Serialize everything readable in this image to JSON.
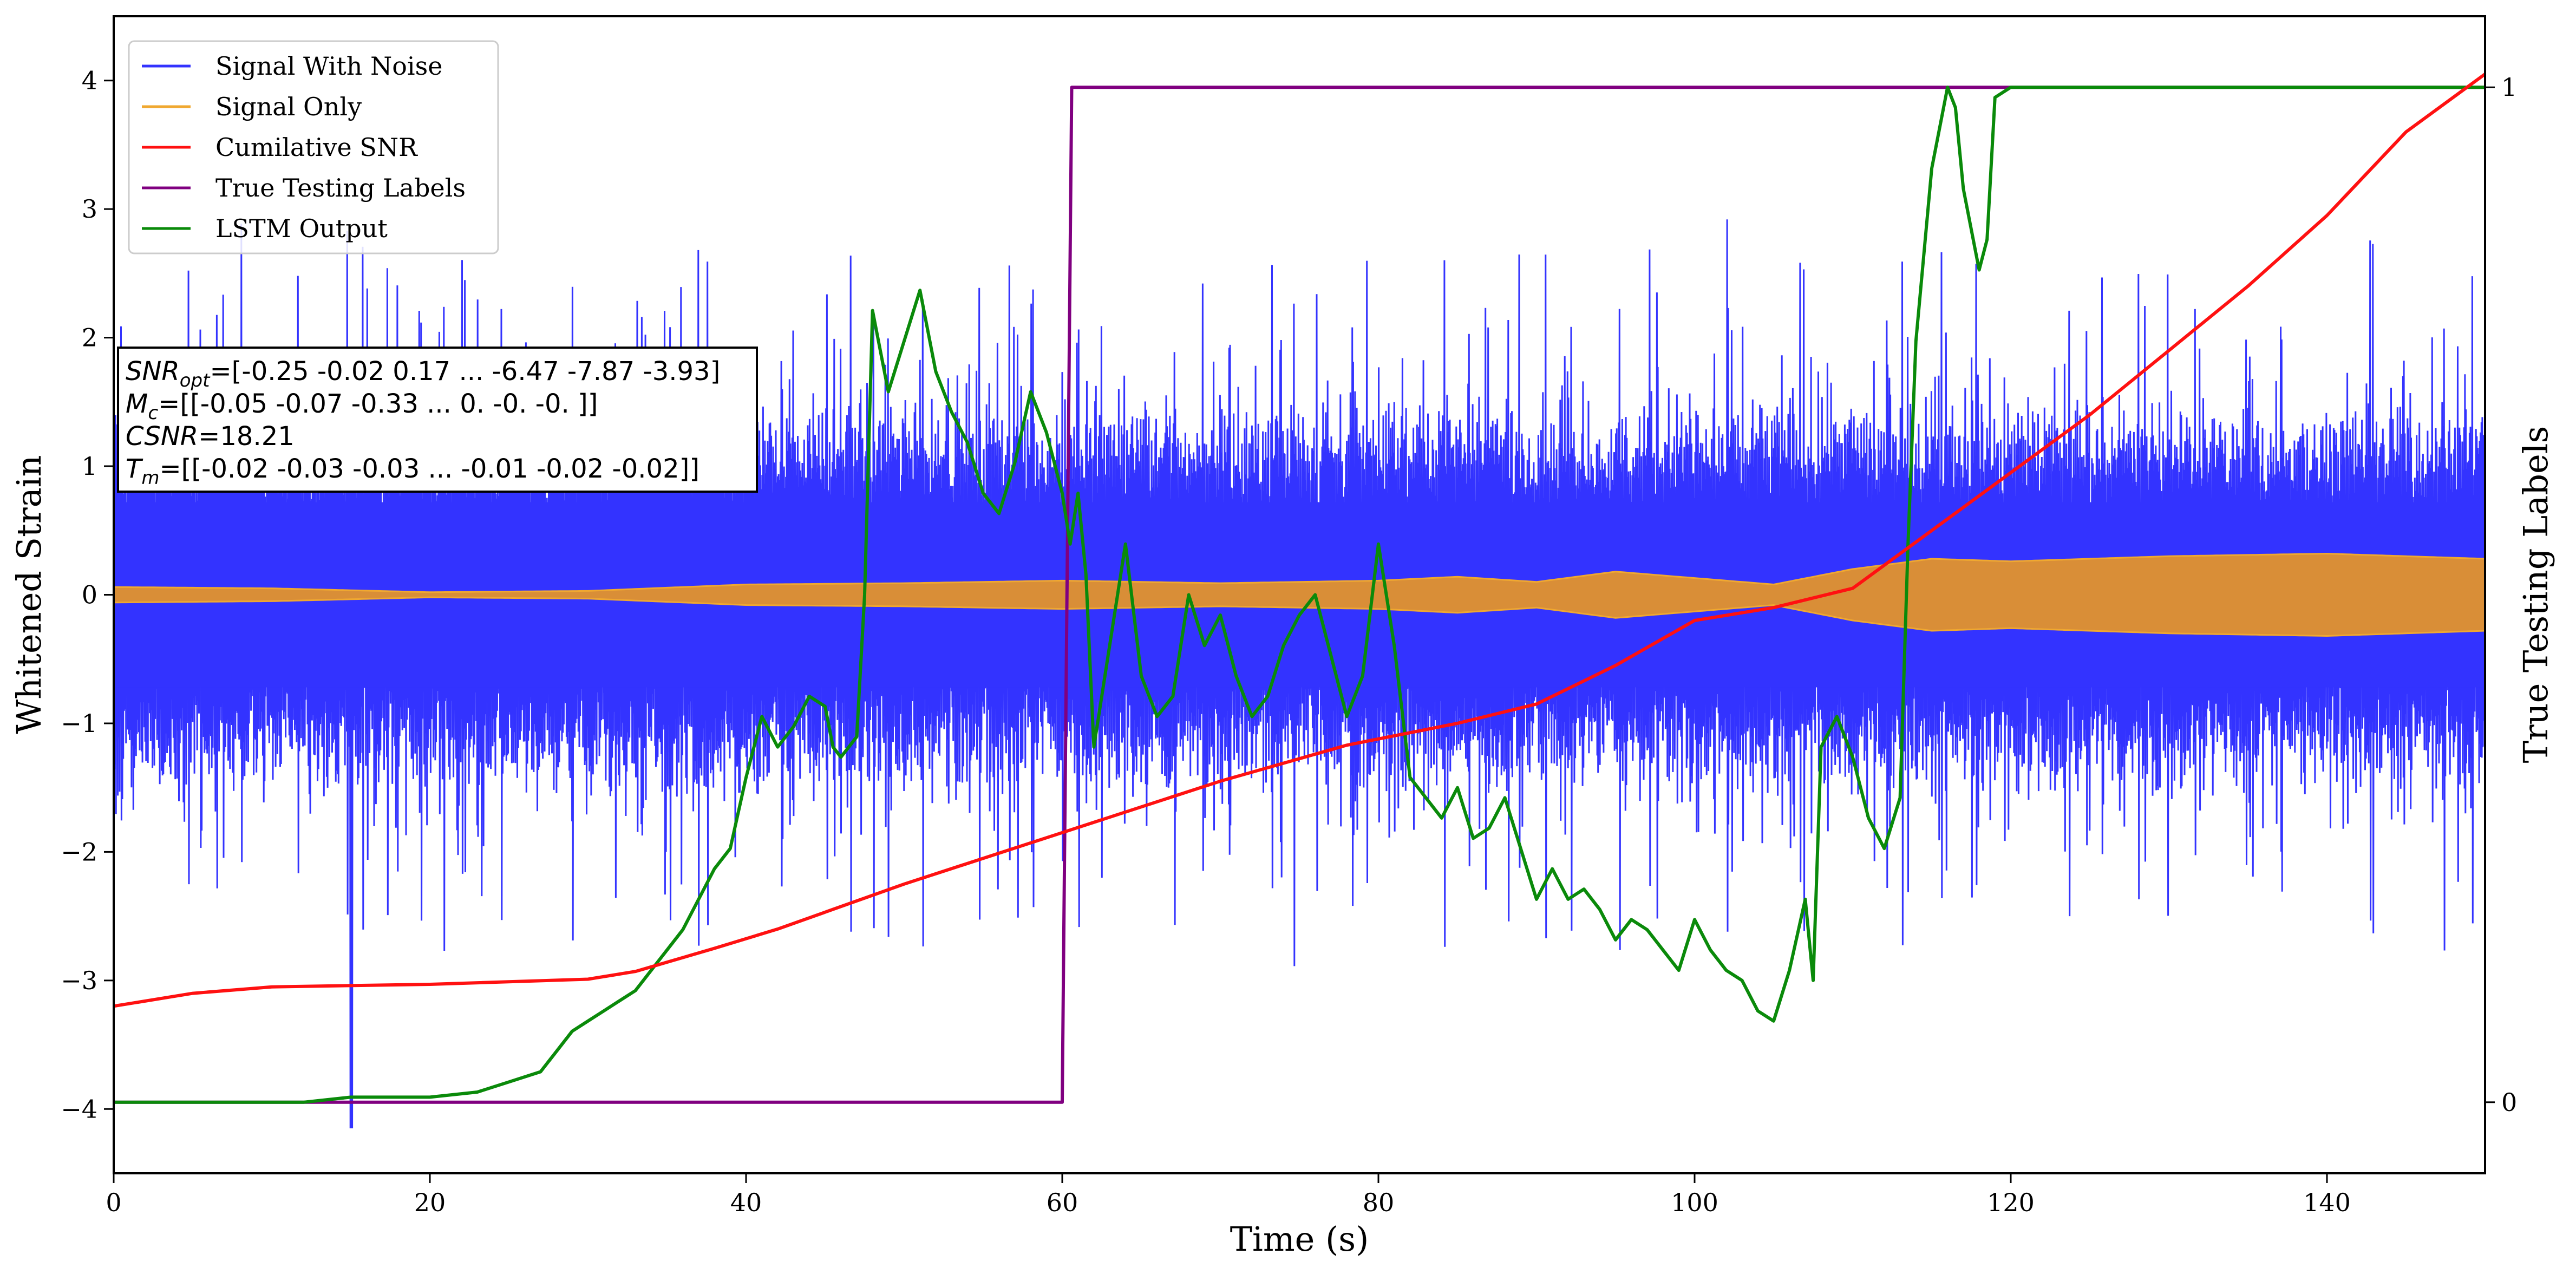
{
  "chart_data": {
    "type": "line",
    "xlabel": "Time (s)",
    "ylabel": "Whitened Strain",
    "y2label": "True Testing Labels",
    "xlim": [
      0,
      150
    ],
    "ylim": [
      -4.5,
      4.5
    ],
    "y2lim": [
      -0.07,
      1.07
    ],
    "grid": false,
    "legend_position": "top-left",
    "x_ticks": [
      0,
      20,
      40,
      60,
      80,
      100,
      120,
      140
    ],
    "x_tick_labels": [
      "0",
      "20",
      "40",
      "60",
      "80",
      "100",
      "120",
      "140"
    ],
    "y_ticks": [
      -4,
      -3,
      -2,
      -1,
      0,
      1,
      2,
      3,
      4
    ],
    "y_tick_labels": [
      "−4",
      "−3",
      "−2",
      "−1",
      "0",
      "1",
      "2",
      "3",
      "4"
    ],
    "y2_ticks": [
      0,
      1
    ],
    "y2_tick_labels": [
      "0",
      "1"
    ],
    "series": [
      {
        "name": "Signal With Noise",
        "color": "#3333ff",
        "axis": "left",
        "kind": "noise",
        "typical_amplitude": 1.0,
        "peak_range": [
          -4.15,
          3.1
        ]
      },
      {
        "name": "Signal Only",
        "color": "#f0a830",
        "axis": "left",
        "kind": "envelope",
        "x": [
          0,
          10,
          20,
          30,
          40,
          50,
          60,
          70,
          80,
          85,
          90,
          95,
          100,
          105,
          110,
          115,
          120,
          130,
          140,
          150
        ],
        "amplitude": [
          0.06,
          0.05,
          0.02,
          0.03,
          0.08,
          0.09,
          0.11,
          0.09,
          0.11,
          0.14,
          0.1,
          0.18,
          0.13,
          0.08,
          0.2,
          0.28,
          0.26,
          0.3,
          0.32,
          0.28
        ]
      },
      {
        "name": "Cumilative SNR",
        "color": "#ff1111",
        "axis": "left",
        "kind": "line",
        "x": [
          0,
          5,
          10,
          20,
          30,
          33,
          38,
          42,
          50,
          60,
          70,
          78,
          85,
          90,
          95,
          100,
          105,
          110,
          115,
          120,
          125,
          130,
          135,
          140,
          145,
          150
        ],
        "y": [
          -3.2,
          -3.1,
          -3.05,
          -3.03,
          -2.99,
          -2.93,
          -2.75,
          -2.6,
          -2.25,
          -1.85,
          -1.45,
          -1.17,
          -1.0,
          -0.85,
          -0.55,
          -0.2,
          -0.1,
          0.05,
          0.5,
          0.95,
          1.4,
          1.9,
          2.4,
          2.95,
          3.6,
          4.05
        ]
      },
      {
        "name": "True Testing Labels",
        "color": "#800080",
        "axis": "right",
        "kind": "line",
        "x": [
          0,
          60,
          60.6,
          150
        ],
        "y": [
          0,
          0,
          1,
          1
        ]
      },
      {
        "name": "LSTM Output",
        "color": "#0a8a0a",
        "axis": "right",
        "kind": "line",
        "x": [
          0,
          10,
          12,
          15,
          20,
          23,
          25,
          27,
          28,
          29,
          30,
          31,
          32,
          33,
          34,
          35,
          36,
          37,
          38,
          39,
          40,
          41,
          42,
          43,
          44,
          45,
          45.5,
          46,
          47,
          47.5,
          48,
          49,
          50,
          51,
          52,
          53,
          54,
          55,
          56,
          57,
          58,
          59,
          60,
          60.5,
          61,
          61.5,
          62,
          63,
          64,
          65,
          66,
          67,
          68,
          69,
          70,
          71,
          72,
          73,
          74,
          75,
          76,
          77,
          78,
          79,
          80,
          81,
          82,
          83,
          84,
          85,
          86,
          87,
          88,
          89,
          90,
          91,
          92,
          93,
          94,
          95,
          96,
          97,
          98,
          99,
          100,
          101,
          102,
          103,
          104,
          105,
          106,
          107,
          107.5,
          108,
          109,
          110,
          111,
          112,
          113,
          113.5,
          114,
          115,
          116,
          116.5,
          117,
          118,
          118.5,
          119,
          120,
          150
        ],
        "y": [
          0,
          0,
          0,
          0.005,
          0.005,
          0.01,
          0.02,
          0.03,
          0.05,
          0.07,
          0.08,
          0.09,
          0.1,
          0.11,
          0.13,
          0.15,
          0.17,
          0.2,
          0.23,
          0.25,
          0.32,
          0.38,
          0.35,
          0.37,
          0.4,
          0.39,
          0.35,
          0.34,
          0.36,
          0.5,
          0.78,
          0.7,
          0.75,
          0.8,
          0.72,
          0.68,
          0.65,
          0.6,
          0.58,
          0.63,
          0.7,
          0.66,
          0.6,
          0.55,
          0.6,
          0.52,
          0.35,
          0.45,
          0.55,
          0.42,
          0.38,
          0.4,
          0.5,
          0.45,
          0.48,
          0.42,
          0.38,
          0.4,
          0.45,
          0.48,
          0.5,
          0.44,
          0.38,
          0.42,
          0.55,
          0.45,
          0.32,
          0.3,
          0.28,
          0.31,
          0.26,
          0.27,
          0.3,
          0.25,
          0.2,
          0.23,
          0.2,
          0.21,
          0.19,
          0.16,
          0.18,
          0.17,
          0.15,
          0.13,
          0.18,
          0.15,
          0.13,
          0.12,
          0.09,
          0.08,
          0.13,
          0.2,
          0.12,
          0.35,
          0.38,
          0.34,
          0.28,
          0.25,
          0.3,
          0.55,
          0.75,
          0.92,
          1.0,
          0.98,
          0.9,
          0.82,
          0.85,
          0.99,
          1.0,
          1.0
        ]
      }
    ],
    "annotation_lines": [
      "SNR_opt=[-0.25 -0.02  0.17 ... -6.47 -7.87 -3.93]",
      "M_c=[[-0.05 -0.07 -0.33 ...  0.   -0.   -0.  ]]",
      "CSNR=18.21",
      "T_m=[[-0.02 -0.03 -0.03 ... -0.01 -0.02 -0.02]]"
    ]
  },
  "annotation": {
    "line1": {
      "sym": "SNR",
      "sub": "opt",
      "rest": "=[-0.25 -0.02  0.17 ... -6.47 -7.87 -3.93]"
    },
    "line2": {
      "sym": "M",
      "sub": "c",
      "rest": "=[[-0.05 -0.07 -0.33 ...  0.   -0.   -0.  ]]"
    },
    "line3": {
      "sym": "CSNR",
      "sub": "",
      "rest": "=18.21"
    },
    "line4": {
      "sym": "T",
      "sub": "m",
      "rest": "=[[-0.02 -0.03 -0.03 ... -0.01 -0.02 -0.02]]"
    }
  }
}
